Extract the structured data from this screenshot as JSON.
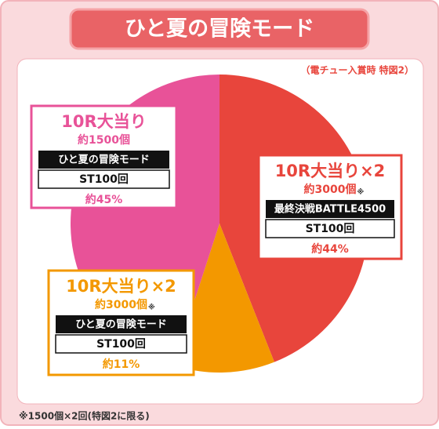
{
  "chart_data": {
    "type": "pie",
    "title": "ひと夏の冒険モード",
    "subtitle": "（電チュー入賞時 特図2）",
    "categories": [
      "10R大当り×2",
      "10R大当り×2",
      "10R大当り"
    ],
    "values": [
      44,
      11,
      45
    ],
    "value_labels": [
      "約44%",
      "約11%",
      "約45%"
    ],
    "colors": [
      "#e8453c",
      "#f39800",
      "#e85298"
    ],
    "slices": [
      {
        "balls": "約3000個",
        "note_mark": "※",
        "mode": "最終決戦BATTLE4500",
        "st": "ST100回"
      },
      {
        "balls": "約3000個",
        "note_mark": "※",
        "mode": "ひと夏の冒険モード",
        "st": "ST100回"
      },
      {
        "balls": "約1500個",
        "mode": "ひと夏の冒険モード",
        "st": "ST100回"
      }
    ],
    "footnote": "※1500個×2回(特図2に限る)"
  }
}
